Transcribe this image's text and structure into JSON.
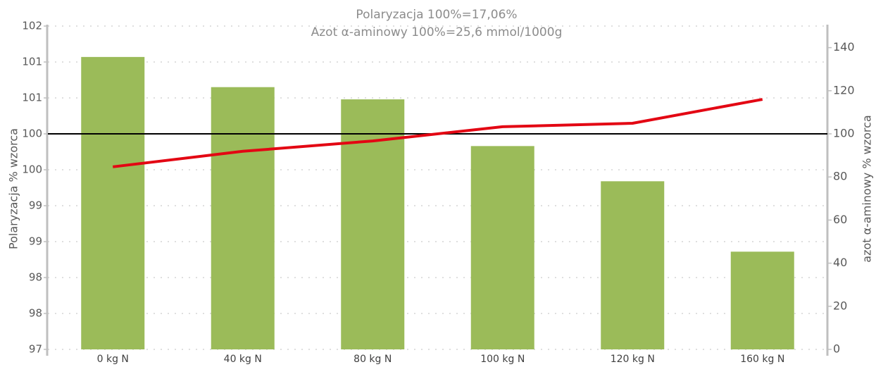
{
  "chart_data": {
    "type": "bar",
    "title": [
      "Polaryzacja 100%=17,06%",
      "Azot α-aminowy 100%=25,6 mmol/1000g"
    ],
    "y_label": "Polaryzacja % wzorca",
    "y2_label": "azot α-aminowy % wzorca",
    "categories": [
      "0 kg N",
      "40 kg N",
      "80 kg N",
      "100 kg N",
      "120 kg N",
      "160 kg N"
    ],
    "series": [
      {
        "type": "bar",
        "color": "#9bbb59",
        "values": [
          101.07,
          100.65,
          100.48,
          99.83,
          99.34,
          98.36
        ]
      },
      {
        "type": "line",
        "axis": "y2",
        "color": "#e30613",
        "values": [
          84.7,
          91.9,
          96.7,
          103.3,
          104.9,
          116
        ]
      }
    ],
    "reference_line": 100,
    "ylim": [
      97,
      101.5
    ],
    "yticks": [
      97,
      {
        "value": 97.5,
        "label": "98"
      },
      98,
      {
        "value": 98.5,
        "label": "99"
      },
      99,
      {
        "value": 99.5,
        "label": "100"
      },
      100,
      {
        "value": 100.5,
        "label": "101"
      },
      101,
      {
        "value": 101.5,
        "label": "102"
      }
    ],
    "y2lim": [
      0,
      150
    ],
    "y2ticks": [
      0,
      20,
      40,
      60,
      80,
      100,
      120,
      140
    ],
    "grid": true
  }
}
